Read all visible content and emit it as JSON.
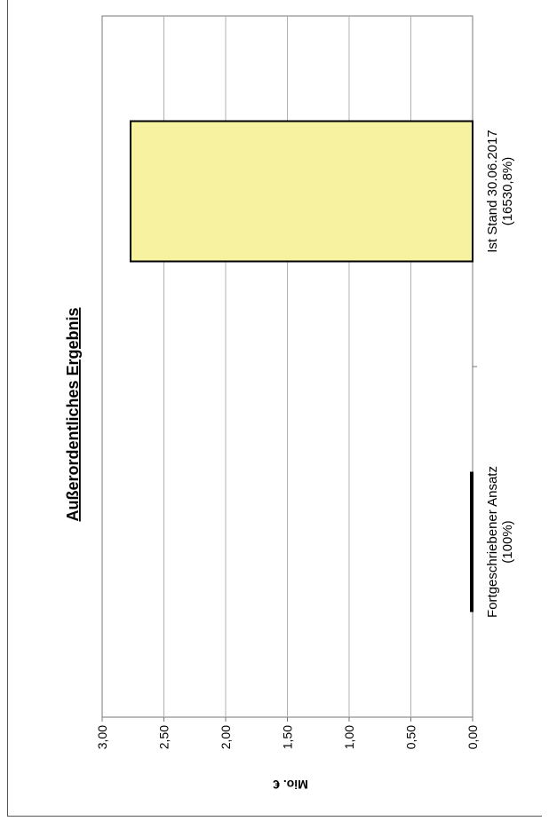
{
  "chart_data": {
    "type": "bar",
    "title": "Außerordentliches Ergebnis",
    "ylabel": "Mio. €",
    "categories": [
      [
        "Fortgeschriebener Ansatz",
        "(100%)"
      ],
      [
        "Ist Stand 30.06.2017",
        "(16530,8%)"
      ]
    ],
    "values": [
      0.0,
      2.77
    ],
    "ylim": [
      0,
      3
    ],
    "yticks": [
      "0,00",
      "0,50",
      "1,00",
      "1,50",
      "2,00",
      "2,50",
      "3,00"
    ],
    "bar_color": "#f7f29f",
    "grid": true,
    "orientation": "rotated-90-cw"
  }
}
